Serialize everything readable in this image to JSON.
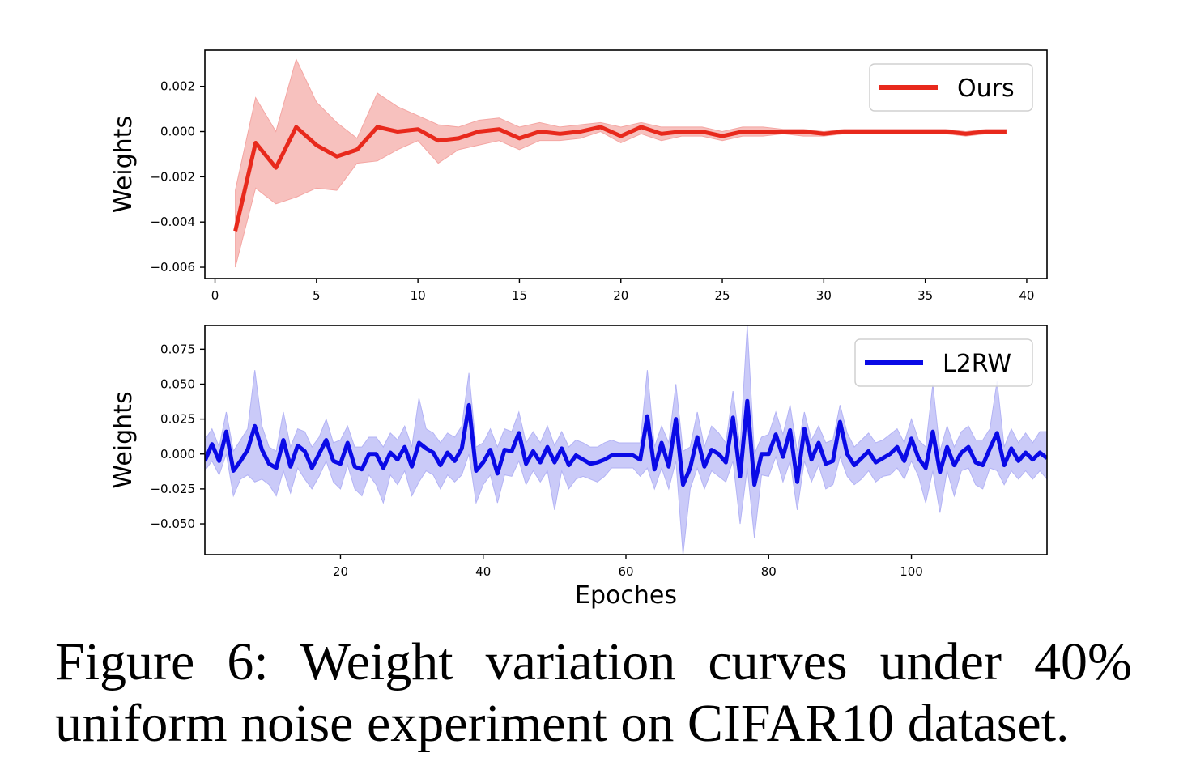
{
  "caption": "Figure 6:  Weight variation curves under 40% uniform noise experiment on CIFAR10 dataset.",
  "chart_data": [
    {
      "type": "line",
      "xlabel": "",
      "ylabel": "Weights",
      "xlim": [
        -0.5,
        41
      ],
      "ylim": [
        -0.0065,
        0.0036
      ],
      "xticks": [
        0,
        5,
        10,
        15,
        20,
        25,
        30,
        35,
        40
      ],
      "yticks": [
        0.002,
        0.0,
        -0.002,
        -0.004,
        -0.006
      ],
      "ytick_labels": [
        "0.002",
        "0.000",
        "−0.002",
        "−0.004",
        "−0.006"
      ],
      "legend_position": "top-right",
      "series": [
        {
          "name": "Ours",
          "color": "#e8291c",
          "band_color": "#f4a6a3",
          "x": [
            1,
            2,
            3,
            4,
            5,
            6,
            7,
            8,
            9,
            10,
            11,
            12,
            13,
            14,
            15,
            16,
            17,
            18,
            19,
            20,
            21,
            22,
            23,
            24,
            25,
            26,
            27,
            28,
            29,
            30,
            31,
            32,
            33,
            34,
            35,
            36,
            37,
            38,
            39
          ],
          "values": [
            -0.0044,
            -0.0005,
            -0.0016,
            0.0002,
            -0.0006,
            -0.0011,
            -0.0008,
            0.0002,
            0.0,
            0.0001,
            -0.0004,
            -0.0003,
            0.0,
            0.0001,
            -0.0003,
            0.0,
            -0.0001,
            0.0,
            0.0002,
            -0.0002,
            0.0002,
            -0.0001,
            0.0,
            0.0,
            -0.0002,
            0.0,
            0.0,
            0.0,
            0.0,
            -0.0001,
            0.0,
            0.0,
            0.0,
            0.0,
            0.0,
            0.0,
            -0.0001,
            0.0,
            0.0
          ],
          "upper": [
            -0.0026,
            0.0015,
            0.0,
            0.0032,
            0.0013,
            0.0004,
            -0.0003,
            0.0017,
            0.0011,
            0.0007,
            0.0003,
            0.0002,
            0.0005,
            0.0006,
            0.0002,
            0.0004,
            0.0002,
            0.0003,
            0.0004,
            0.0002,
            0.0004,
            0.0002,
            0.0002,
            0.0002,
            0.0,
            0.0002,
            0.0002,
            0.0001,
            0.0001,
            0.0,
            0.0001,
            0.0001,
            0.0001,
            0.0001,
            0.0001,
            0.0001,
            0.0,
            0.0001,
            0.0001
          ],
          "lower": [
            -0.006,
            -0.0025,
            -0.0032,
            -0.0029,
            -0.0025,
            -0.0026,
            -0.0014,
            -0.0013,
            -0.0008,
            -0.0004,
            -0.0014,
            -0.0008,
            -0.0006,
            -0.0004,
            -0.0008,
            -0.0004,
            -0.0004,
            -0.0003,
            0.0,
            -0.0005,
            -0.0001,
            -0.0004,
            -0.0002,
            -0.0002,
            -0.0004,
            -0.0002,
            -0.0002,
            -0.0001,
            -0.0002,
            -0.0002,
            -0.0001,
            -0.0001,
            -0.0001,
            -0.0001,
            -0.0001,
            -0.0001,
            -0.0002,
            -0.0001,
            -0.0001
          ]
        }
      ]
    },
    {
      "type": "line",
      "xlabel": "Epoches",
      "ylabel": "Weights",
      "xlim": [
        1,
        119
      ],
      "ylim": [
        -0.072,
        0.092
      ],
      "xticks": [
        20,
        40,
        60,
        80,
        100
      ],
      "yticks": [
        0.075,
        0.05,
        0.025,
        0.0,
        -0.025,
        -0.05
      ],
      "ytick_labels": [
        "0.075",
        "0.050",
        "0.025",
        "0.000",
        "−0.025",
        "−0.050"
      ],
      "legend_position": "top-right",
      "series": [
        {
          "name": "L2RW",
          "color": "#0a0ae6",
          "band_color": "#b3b3f5",
          "x": [
            1,
            2,
            3,
            4,
            5,
            6,
            7,
            8,
            9,
            10,
            11,
            12,
            13,
            14,
            15,
            16,
            17,
            18,
            19,
            20,
            21,
            22,
            23,
            24,
            25,
            26,
            27,
            28,
            29,
            30,
            31,
            32,
            33,
            34,
            35,
            36,
            37,
            38,
            39,
            40,
            41,
            42,
            43,
            44,
            45,
            46,
            47,
            48,
            49,
            50,
            51,
            52,
            53,
            54,
            55,
            56,
            57,
            58,
            59,
            60,
            61,
            62,
            63,
            64,
            65,
            66,
            67,
            68,
            69,
            70,
            71,
            72,
            73,
            74,
            75,
            76,
            77,
            78,
            79,
            80,
            81,
            82,
            83,
            84,
            85,
            86,
            87,
            88,
            89,
            90,
            91,
            92,
            93,
            94,
            95,
            96,
            97,
            98,
            99,
            100,
            101,
            102,
            103,
            104,
            105,
            106,
            107,
            108,
            109,
            110,
            111,
            112,
            113,
            114,
            115,
            116,
            117,
            118,
            119
          ],
          "values": [
            -0.005,
            0.007,
            -0.005,
            0.016,
            -0.012,
            -0.005,
            0.003,
            0.02,
            0.003,
            -0.007,
            -0.01,
            0.01,
            -0.009,
            0.006,
            0.002,
            -0.01,
            0.0,
            0.01,
            -0.005,
            -0.007,
            0.008,
            -0.009,
            -0.011,
            0.0,
            0.0,
            -0.01,
            0.001,
            -0.004,
            0.005,
            -0.009,
            0.008,
            0.004,
            0.001,
            -0.008,
            0.001,
            -0.005,
            0.004,
            0.035,
            -0.012,
            -0.006,
            0.003,
            -0.014,
            0.003,
            0.002,
            0.015,
            -0.007,
            0.002,
            -0.006,
            0.005,
            -0.006,
            0.004,
            -0.008,
            -0.001,
            -0.004,
            -0.007,
            -0.006,
            -0.004,
            -0.001,
            -0.001,
            -0.001,
            -0.001,
            -0.004,
            0.027,
            -0.011,
            0.008,
            -0.009,
            0.025,
            -0.022,
            -0.01,
            0.012,
            -0.009,
            0.003,
            0.0,
            -0.006,
            0.026,
            -0.016,
            0.038,
            -0.022,
            0.0,
            0.0,
            0.014,
            -0.002,
            0.017,
            -0.02,
            0.018,
            -0.004,
            0.008,
            -0.007,
            -0.005,
            0.023,
            0.0,
            -0.008,
            -0.003,
            0.002,
            -0.006,
            -0.003,
            0.0,
            0.005,
            -0.005,
            0.011,
            -0.003,
            -0.01,
            0.016,
            -0.013,
            0.005,
            -0.008,
            0.001,
            0.005,
            -0.006,
            -0.008,
            0.004,
            0.015,
            -0.008,
            0.004,
            -0.005,
            0.001,
            -0.004,
            0.001,
            -0.003
          ],
          "upper": [
            0.01,
            0.018,
            0.005,
            0.03,
            0.002,
            0.01,
            0.018,
            0.06,
            0.02,
            0.005,
            0.002,
            0.03,
            0.005,
            0.018,
            0.016,
            0.005,
            0.012,
            0.025,
            0.008,
            0.01,
            0.02,
            0.005,
            0.005,
            0.012,
            0.012,
            0.005,
            0.015,
            0.01,
            0.02,
            0.005,
            0.04,
            0.018,
            0.015,
            0.008,
            0.015,
            0.012,
            0.02,
            0.058,
            0.005,
            0.008,
            0.018,
            0.005,
            0.018,
            0.016,
            0.03,
            0.008,
            0.016,
            0.008,
            0.02,
            0.006,
            0.016,
            0.005,
            0.01,
            0.008,
            0.005,
            0.005,
            0.008,
            0.01,
            0.008,
            0.008,
            0.008,
            0.008,
            0.06,
            0.005,
            0.02,
            0.008,
            0.05,
            0.002,
            0.005,
            0.03,
            0.005,
            0.02,
            0.015,
            0.008,
            0.045,
            0.005,
            0.092,
            0.0,
            0.012,
            0.014,
            0.03,
            0.014,
            0.035,
            0.002,
            0.03,
            0.01,
            0.02,
            0.008,
            0.01,
            0.035,
            0.015,
            0.005,
            0.01,
            0.015,
            0.008,
            0.01,
            0.014,
            0.018,
            0.008,
            0.025,
            0.01,
            0.005,
            0.05,
            0.002,
            0.02,
            0.005,
            0.016,
            0.02,
            0.01,
            0.01,
            0.018,
            0.052,
            0.005,
            0.018,
            0.008,
            0.015,
            0.008,
            0.016,
            0.016
          ],
          "lower": [
            -0.012,
            -0.005,
            -0.015,
            0.0,
            -0.03,
            -0.018,
            -0.015,
            -0.02,
            -0.018,
            -0.022,
            -0.03,
            -0.012,
            -0.028,
            -0.01,
            -0.018,
            -0.025,
            -0.016,
            -0.005,
            -0.02,
            -0.025,
            -0.008,
            -0.025,
            -0.03,
            -0.015,
            -0.022,
            -0.035,
            -0.015,
            -0.022,
            -0.012,
            -0.03,
            -0.02,
            -0.012,
            -0.015,
            -0.025,
            -0.015,
            -0.02,
            -0.015,
            0.0,
            -0.035,
            -0.022,
            -0.015,
            -0.035,
            -0.015,
            -0.016,
            -0.005,
            -0.022,
            -0.012,
            -0.02,
            -0.012,
            -0.04,
            -0.012,
            -0.025,
            -0.018,
            -0.016,
            -0.018,
            -0.02,
            -0.016,
            -0.01,
            -0.01,
            -0.01,
            -0.01,
            -0.016,
            -0.01,
            -0.025,
            -0.01,
            -0.025,
            -0.005,
            -0.072,
            -0.025,
            -0.01,
            -0.025,
            -0.012,
            -0.016,
            -0.02,
            -0.005,
            -0.05,
            -0.01,
            -0.06,
            -0.015,
            -0.016,
            -0.002,
            -0.02,
            -0.005,
            -0.04,
            -0.005,
            -0.02,
            -0.008,
            -0.025,
            -0.022,
            -0.002,
            -0.016,
            -0.022,
            -0.018,
            -0.012,
            -0.02,
            -0.016,
            -0.015,
            -0.01,
            -0.018,
            -0.005,
            -0.016,
            -0.035,
            -0.012,
            -0.042,
            -0.012,
            -0.03,
            -0.012,
            -0.01,
            -0.022,
            -0.025,
            -0.01,
            -0.012,
            -0.022,
            -0.012,
            -0.018,
            -0.012,
            -0.018,
            -0.012,
            -0.018
          ]
        }
      ]
    }
  ]
}
